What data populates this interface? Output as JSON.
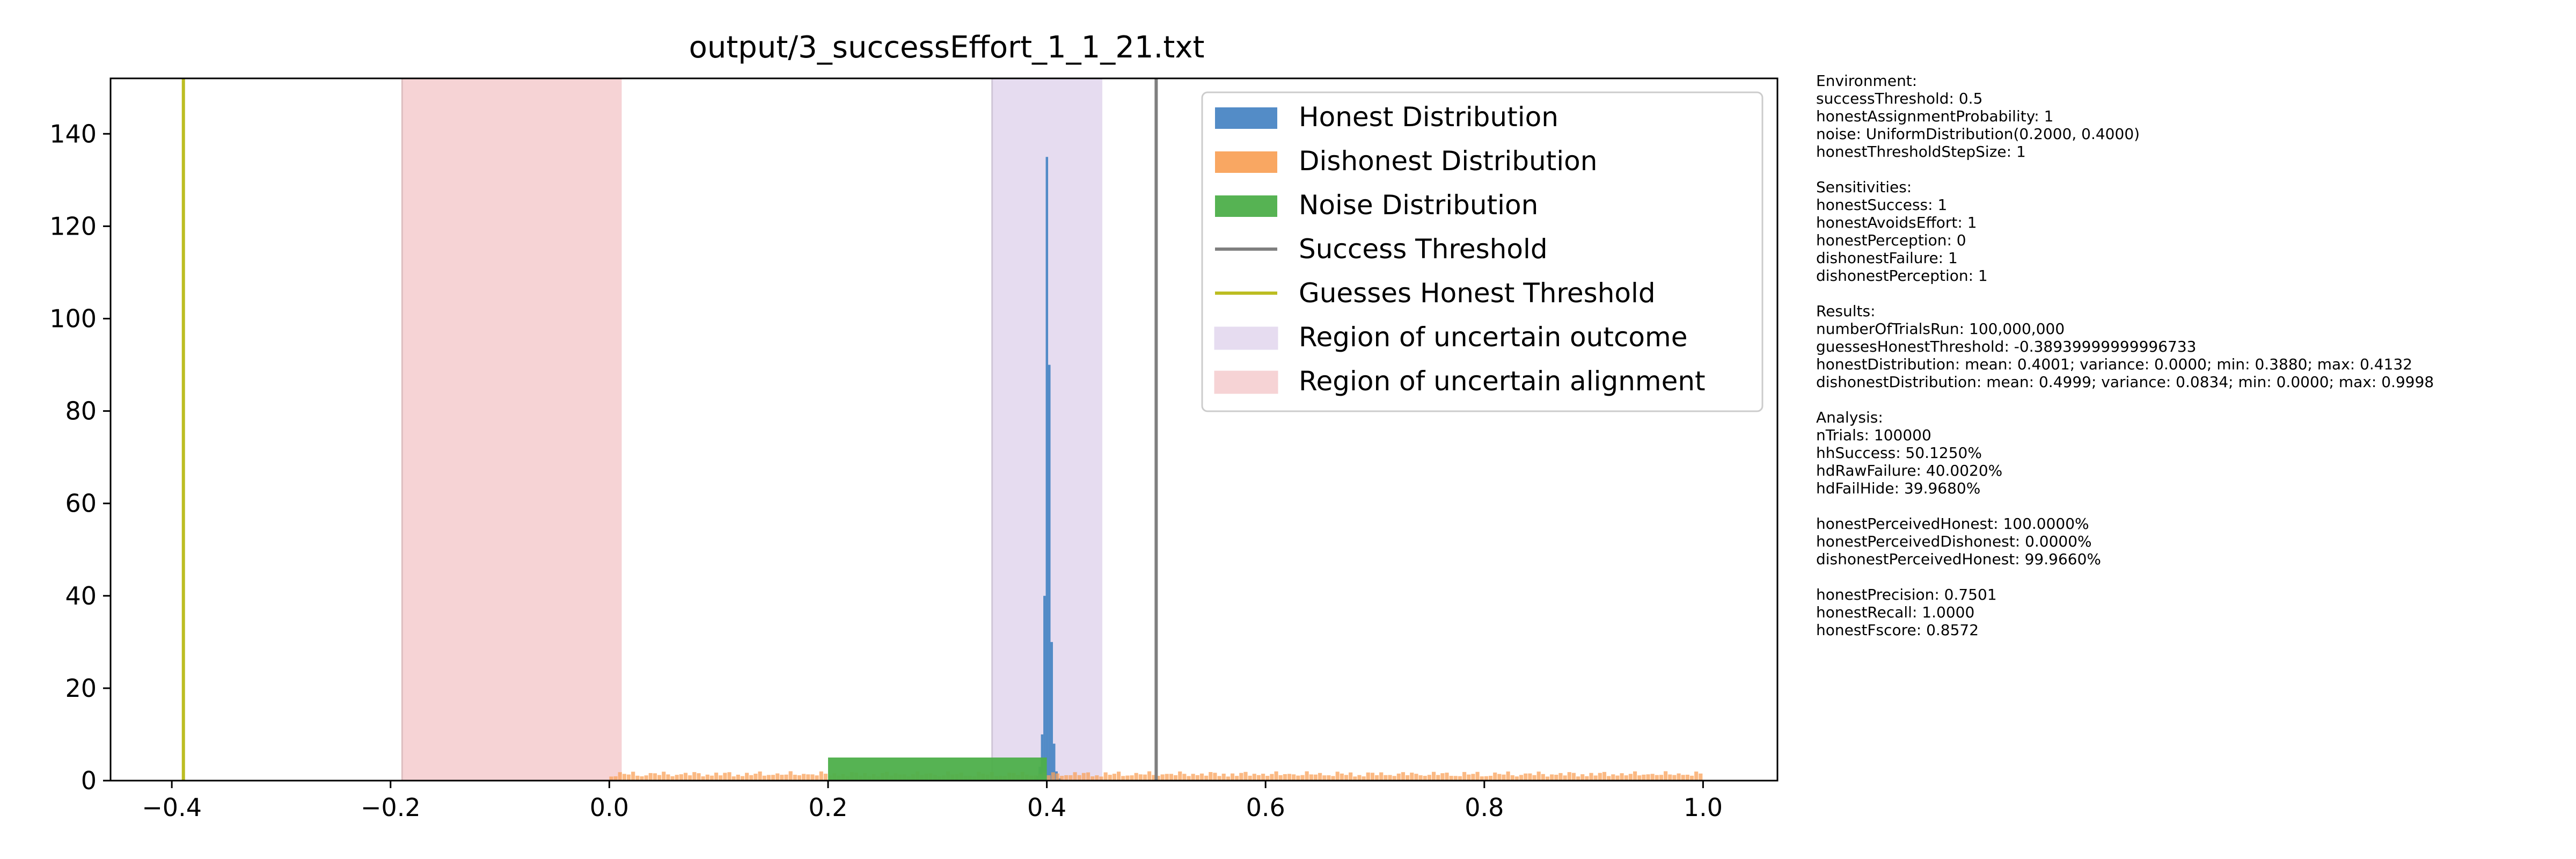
{
  "chart_data": {
    "type": "histogram",
    "title": "output/3_successEffort_1_1_21.txt",
    "xlabel": "",
    "ylabel": "",
    "xlim": [
      -0.456,
      1.068
    ],
    "ylim": [
      0,
      152
    ],
    "x_ticks": [
      -0.4,
      -0.2,
      0.0,
      0.2,
      0.4,
      0.6,
      0.8,
      1.0
    ],
    "x_tick_labels": [
      "−0.4",
      "−0.2",
      "0.0",
      "0.2",
      "0.4",
      "0.6",
      "0.8",
      "1.0"
    ],
    "y_ticks": [
      0,
      20,
      40,
      60,
      80,
      100,
      120,
      140
    ],
    "y_tick_labels": [
      "0",
      "20",
      "40",
      "60",
      "80",
      "100",
      "120",
      "140"
    ],
    "grid": false,
    "legend_position": "top-right",
    "series": [
      {
        "name": "Honest Distribution",
        "kind": "histogram",
        "color": "#4a86c4",
        "bins": [
          {
            "x0": 0.388,
            "x1": 0.3902,
            "count": 0.5
          },
          {
            "x0": 0.3902,
            "x1": 0.3924,
            "count": 1
          },
          {
            "x0": 0.3924,
            "x1": 0.3946,
            "count": 3
          },
          {
            "x0": 0.3946,
            "x1": 0.3968,
            "count": 10
          },
          {
            "x0": 0.3968,
            "x1": 0.399,
            "count": 40
          },
          {
            "x0": 0.399,
            "x1": 0.4012,
            "count": 135
          },
          {
            "x0": 0.4012,
            "x1": 0.4034,
            "count": 90
          },
          {
            "x0": 0.4034,
            "x1": 0.4056,
            "count": 30
          },
          {
            "x0": 0.4056,
            "x1": 0.4078,
            "count": 8
          },
          {
            "x0": 0.4078,
            "x1": 0.41,
            "count": 2
          },
          {
            "x0": 0.41,
            "x1": 0.4132,
            "count": 0.5
          }
        ]
      },
      {
        "name": "Dishonest Distribution",
        "kind": "histogram",
        "color": "#f9a25a",
        "uniform": {
          "x0": 0.0,
          "x1": 1.0,
          "count_approx": 1.6,
          "n_bins": 250
        }
      },
      {
        "name": "Noise Distribution",
        "kind": "histogram",
        "color": "#4daf4a",
        "bins": [
          {
            "x0": 0.2,
            "x1": 0.4,
            "count": 5
          }
        ]
      },
      {
        "name": "Success Threshold",
        "kind": "vline",
        "x": 0.5,
        "color": "#7f7f7f"
      },
      {
        "name": "Guesses Honest Threshold",
        "kind": "vline",
        "x": -0.38939999999996733,
        "color": "#bcbd22"
      },
      {
        "name": "Region of uncertain outcome",
        "kind": "vspan",
        "x0": 0.35,
        "x1": 0.45,
        "color": "#e6dcf0"
      },
      {
        "name": "Region of uncertain alignment",
        "kind": "vspan",
        "x0": -0.1894,
        "x1": 0.0106,
        "color": "#f6d3d5"
      }
    ]
  },
  "side_panel": {
    "blocks": [
      [
        "Environment:",
        "successThreshold: 0.5",
        "honestAssignmentProbability: 1",
        "noise: UniformDistribution(0.2000, 0.4000)",
        "honestThresholdStepSize: 1"
      ],
      [
        "Sensitivities:",
        "honestSuccess: 1",
        "honestAvoidsEffort: 1",
        "honestPerception: 0",
        "dishonestFailure: 1",
        "dishonestPerception: 1"
      ],
      [
        "Results:",
        "numberOfTrialsRun: 100,000,000",
        "guessesHonestThreshold: -0.38939999999996733",
        "honestDistribution: mean: 0.4001; variance: 0.0000; min: 0.3880; max: 0.4132",
        "dishonestDistribution: mean: 0.4999; variance: 0.0834; min: 0.0000; max: 0.9998"
      ],
      [
        "Analysis:",
        "nTrials: 100000",
        "hhSuccess: 50.1250%",
        "hdRawFailure: 40.0020%",
        "hdFailHide: 39.9680%"
      ],
      [
        "honestPerceivedHonest: 100.0000%",
        "honestPerceivedDishonest: 0.0000%",
        "dishonestPerceivedHonest: 99.9660%"
      ],
      [
        "honestPrecision: 0.7501",
        "honestRecall: 1.0000",
        "honestFscore: 0.8572"
      ]
    ]
  }
}
